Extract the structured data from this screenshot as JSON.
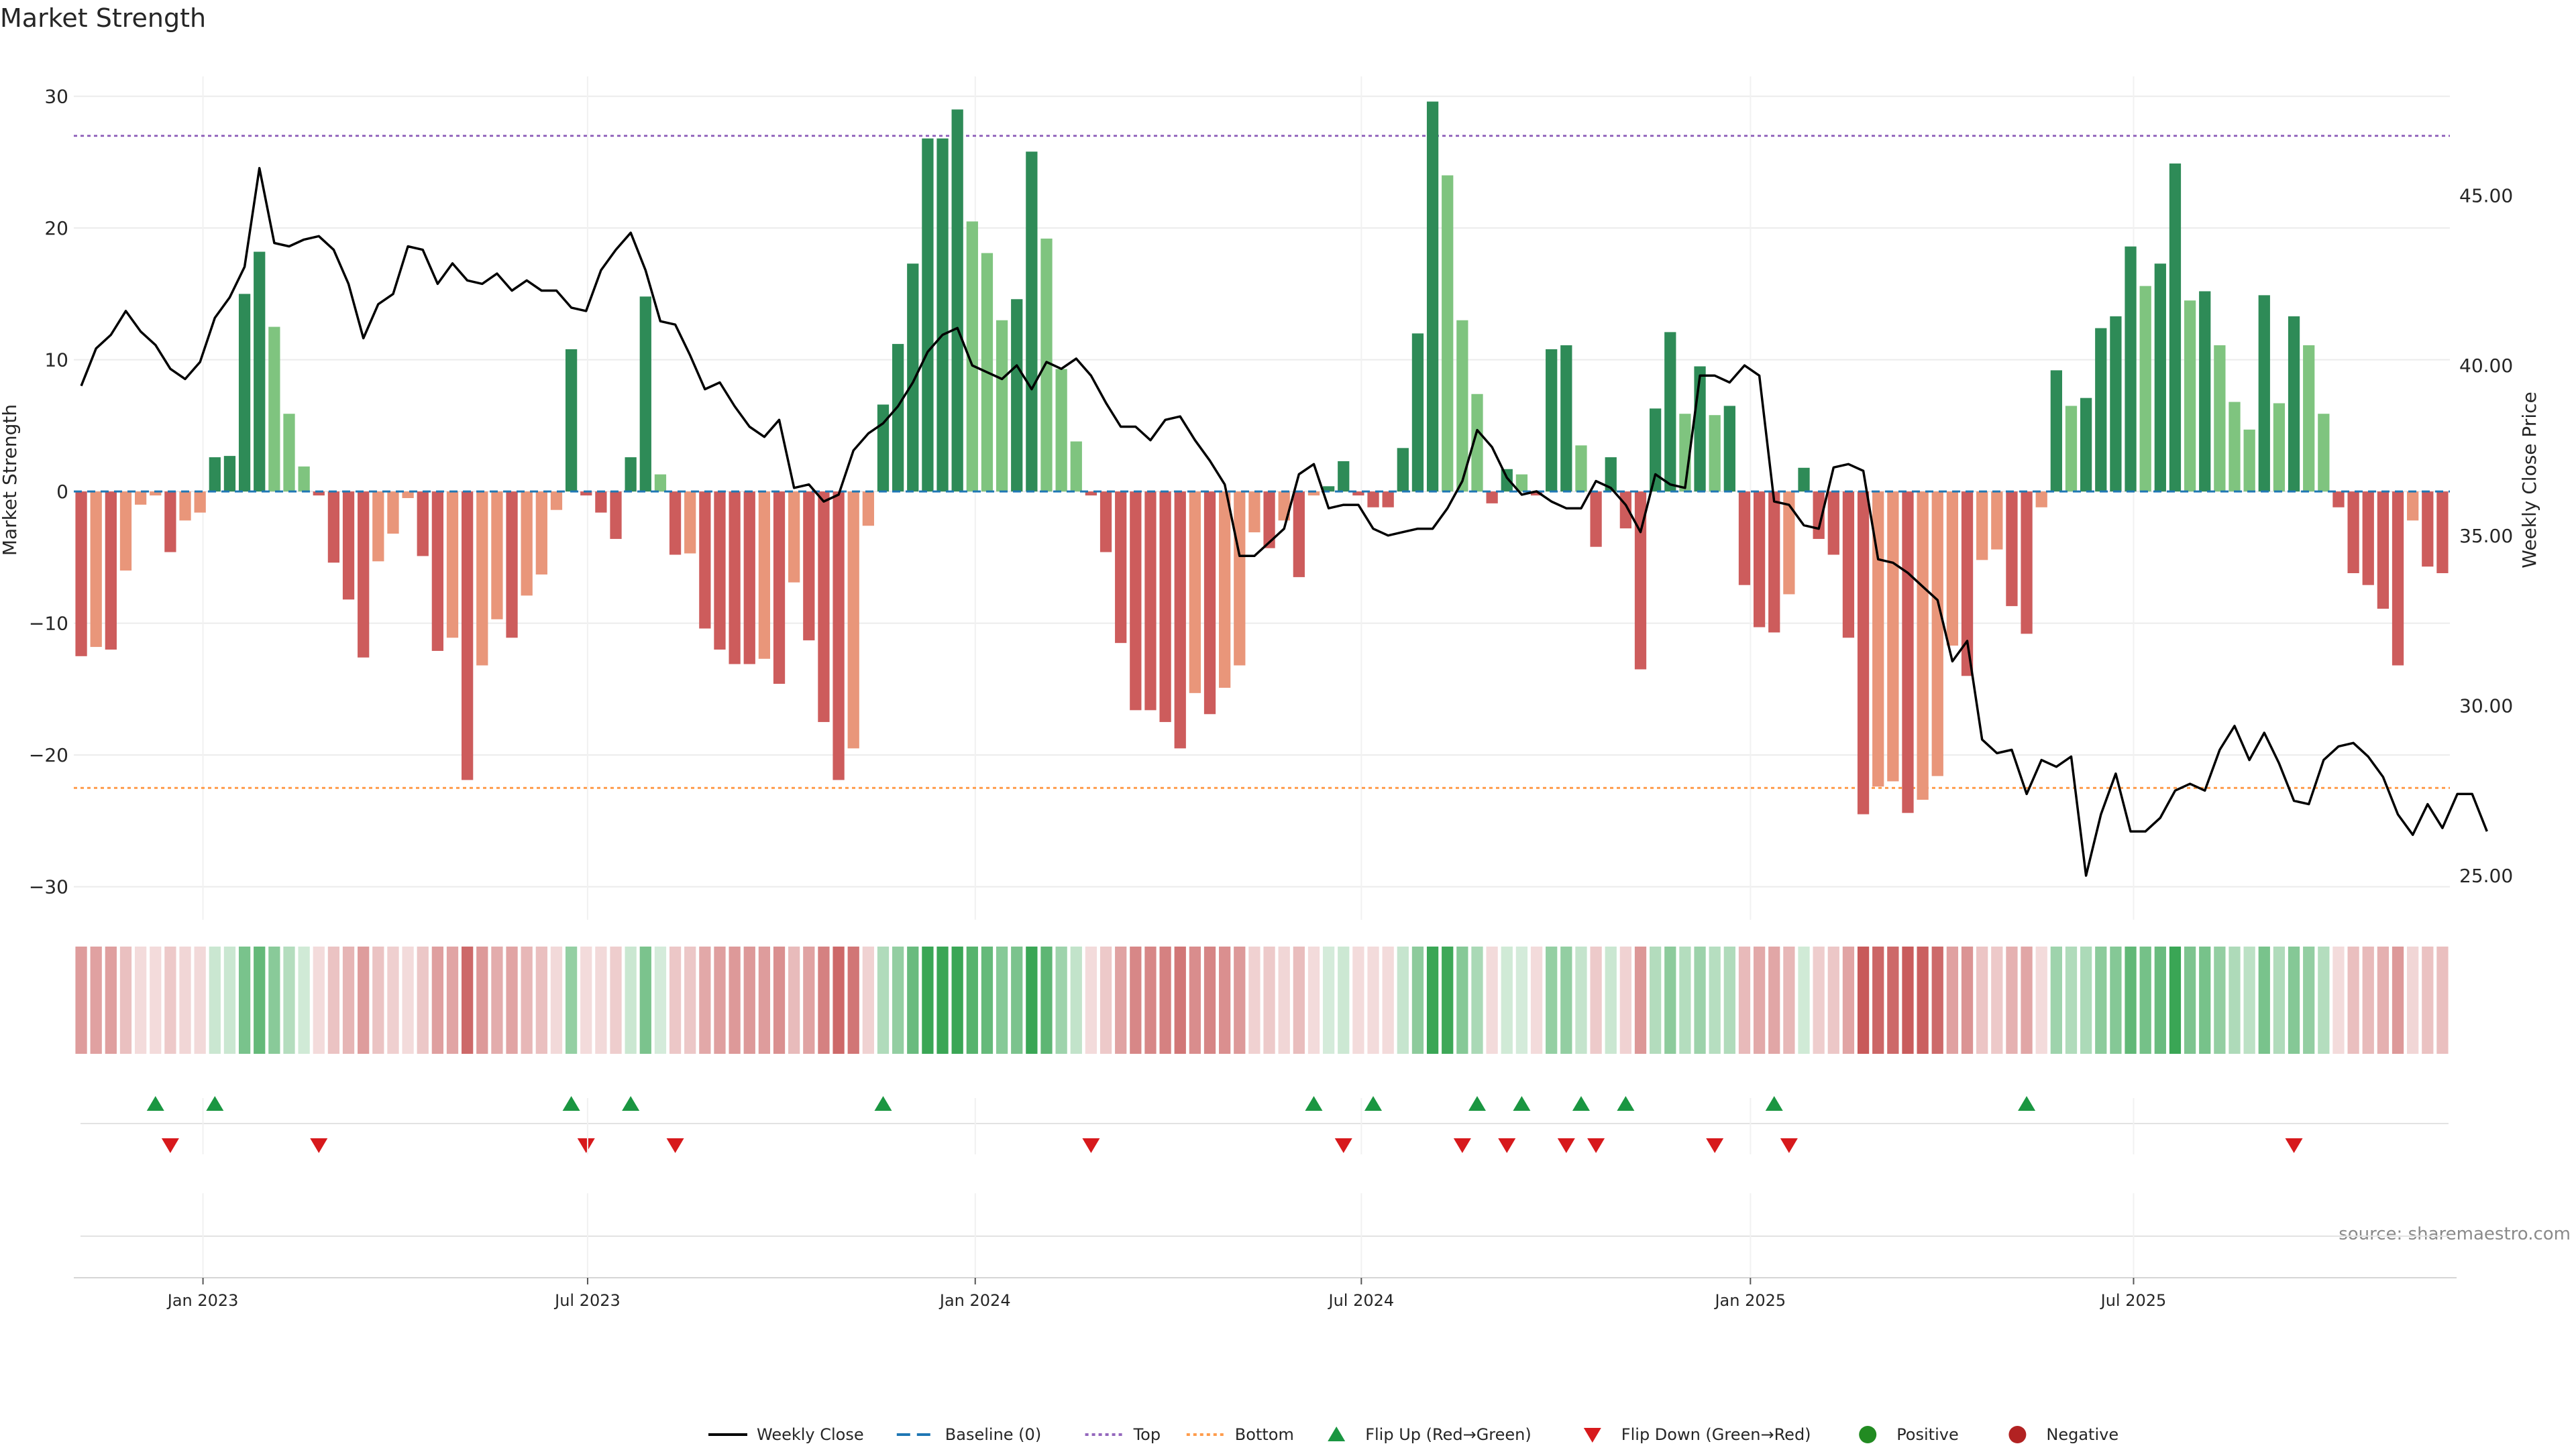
{
  "title": "Market Strength",
  "source": "source: sharemaestro.com",
  "chart_data": {
    "type": "bar",
    "y_left_label": "Market Strength",
    "y_right_label": "Weekly Close Price",
    "y_left_ticks": [
      "30",
      "20",
      "10",
      "0",
      "−10",
      "−20",
      "−30"
    ],
    "y_left_tick_values": [
      30,
      20,
      10,
      0,
      -10,
      -20,
      -30
    ],
    "y_left_range": [
      -32,
      31
    ],
    "y_right_ticks": [
      "45.00",
      "40.00",
      "35.00",
      "30.00",
      "25.00"
    ],
    "y_right_tick_values": [
      45,
      40,
      35,
      30,
      25
    ],
    "y_right_range": [
      23.9,
      48.3
    ],
    "x_ticks": [
      "Jan 2023",
      "Jul 2023",
      "Jan 2024",
      "Jul 2024",
      "Jan 2025",
      "Jul 2025"
    ],
    "x_tick_weeks": [
      8.7,
      34.6,
      60.7,
      86.7,
      112.9,
      138.7
    ],
    "top_threshold": 27,
    "bottom_threshold": -22.5,
    "grid": true,
    "legend_position": "bottom-center",
    "colors": {
      "strong_green": "#2e8b57",
      "light_green": "#7fc47f",
      "strong_red": "#cd5c5c",
      "light_red": "#e9967a",
      "price_line": "#000000",
      "baseline": "#1f77b4",
      "top_line": "#9467bd",
      "bottom_line": "#ff9d4d",
      "flip_up": "#1a9641",
      "flip_down": "#d7191c",
      "positive_dot": "#228b22",
      "negative_dot": "#b22222"
    },
    "series": [
      {
        "name": "Market Strength",
        "values": [
          -12.5,
          -11.8,
          -12,
          -6,
          -1,
          -0.3,
          -4.6,
          -2.2,
          -1.6,
          2.6,
          2.7,
          15,
          18.2,
          12.5,
          5.9,
          1.9,
          -0.3,
          -5.4,
          -8.2,
          -12.6,
          -5.3,
          -3.2,
          -0.5,
          -4.9,
          -12.1,
          -11.1,
          -21.9,
          -13.2,
          -9.7,
          -11.1,
          -7.9,
          -6.3,
          -1.4,
          10.8,
          -0.3,
          -1.6,
          -3.6,
          2.6,
          14.8,
          1.3,
          -4.8,
          -4.7,
          -10.4,
          -12,
          -13.1,
          -13.1,
          -12.7,
          -14.6,
          -6.9,
          -11.3,
          -17.5,
          -21.9,
          -19.5,
          -2.6,
          6.6,
          11.2,
          17.3,
          26.8,
          26.8,
          29,
          20.5,
          18.1,
          13,
          14.6,
          25.8,
          19.2,
          9.3,
          3.8,
          -0.3,
          -4.6,
          -11.5,
          -16.6,
          -16.6,
          -17.5,
          -19.5,
          -15.3,
          -16.9,
          -14.9,
          -13.2,
          -3.1,
          -4.3,
          -2.2,
          -6.5,
          -0.3,
          0.4,
          2.3,
          -0.3,
          -1.2,
          -1.2,
          3.3,
          12,
          29.6,
          24,
          13,
          7.4,
          -0.9,
          1.7,
          1.3,
          -0.3,
          10.8,
          11.1,
          3.5,
          -4.2,
          2.6,
          -2.8,
          -13.5,
          6.3,
          12.1,
          5.9,
          9.5,
          5.8,
          6.5,
          -7.1,
          -10.3,
          -10.7,
          -7.8,
          1.8,
          -3.6,
          -4.8,
          -11.1,
          -24.5,
          -22.4,
          -22,
          -24.4,
          -23.4,
          -21.6,
          -11.7,
          -14,
          -5.2,
          -4.4,
          -8.7,
          -10.8,
          -1.2,
          9.2,
          6.5,
          7.1,
          12.4,
          13.3,
          18.6,
          15.6,
          17.3,
          24.9,
          14.5,
          15.2,
          11.1,
          6.8,
          4.7,
          14.9,
          6.7,
          13.3,
          11.1,
          5.9,
          -1.2,
          -6.2,
          -7.1,
          -8.9,
          -13.2,
          -2.2,
          -5.7,
          -6.2
        ]
      },
      {
        "name": "Weekly Close",
        "values": [
          39.4,
          40.5,
          40.9,
          41.6,
          41,
          40.6,
          39.9,
          39.6,
          40.1,
          41.4,
          42,
          42.9,
          45.8,
          43.6,
          43.5,
          43.7,
          43.8,
          43.4,
          42.4,
          40.8,
          41.8,
          42.1,
          43.5,
          43.4,
          42.4,
          43,
          42.5,
          42.4,
          42.7,
          42.2,
          42.5,
          42.2,
          42.2,
          41.7,
          41.6,
          42.8,
          43.4,
          43.9,
          42.8,
          41.3,
          41.2,
          40.3,
          39.3,
          39.5,
          38.8,
          38.2,
          37.9,
          38.4,
          36.4,
          36.5,
          36,
          36.2,
          37.5,
          38,
          38.3,
          38.8,
          39.5,
          40.4,
          40.9,
          41.1,
          40,
          39.8,
          39.6,
          40,
          39.3,
          40.1,
          39.9,
          40.2,
          39.7,
          38.9,
          38.2,
          38.2,
          37.8,
          38.4,
          38.5,
          37.8,
          37.2,
          36.5,
          34.4,
          34.4,
          34.8,
          35.2,
          36.8,
          37.1,
          35.8,
          35.9,
          35.9,
          35.2,
          35,
          35.1,
          35.2,
          35.2,
          35.8,
          36.6,
          38.1,
          37.6,
          36.7,
          36.2,
          36.3,
          36,
          35.8,
          35.8,
          36.6,
          36.4,
          35.9,
          35.1,
          36.8,
          36.5,
          36.4,
          39.7,
          39.7,
          39.5,
          40,
          39.7,
          36,
          35.9,
          35.3,
          35.2,
          37,
          37.1,
          36.9,
          34.3,
          34.2,
          33.9,
          33.5,
          33.1,
          31.3,
          31.9,
          29,
          28.6,
          28.7,
          27.4,
          28.4,
          28.2,
          28.5,
          25,
          26.8,
          28,
          26.3,
          26.3,
          26.7,
          27.5,
          27.7,
          27.5,
          28.7,
          29.4,
          28.4,
          29.2,
          28.3,
          27.2,
          27.1,
          28.4,
          28.8,
          28.9,
          28.5,
          27.9,
          26.8,
          26.2,
          27.1,
          26.4,
          27.4,
          27.4,
          26.3
        ]
      }
    ],
    "flip_up_weeks": [
      5,
      9,
      33,
      37,
      54,
      83,
      87,
      94,
      97,
      101,
      104,
      114,
      131
    ],
    "flip_down_weeks": [
      6,
      16,
      34,
      40,
      68,
      85,
      93,
      96,
      100,
      102,
      110,
      115,
      149
    ],
    "legend": [
      {
        "label": "Weekly Close",
        "kind": "line"
      },
      {
        "label": "Baseline (0)",
        "kind": "dash"
      },
      {
        "label": "Top",
        "kind": "dotted"
      },
      {
        "label": "Bottom",
        "kind": "dotted"
      },
      {
        "label": "Flip Up (Red→Green)",
        "kind": "triangle-up"
      },
      {
        "label": "Flip Down (Green→Red)",
        "kind": "triangle-down"
      },
      {
        "label": "Positive",
        "kind": "dot"
      },
      {
        "label": "Negative",
        "kind": "dot"
      }
    ]
  }
}
